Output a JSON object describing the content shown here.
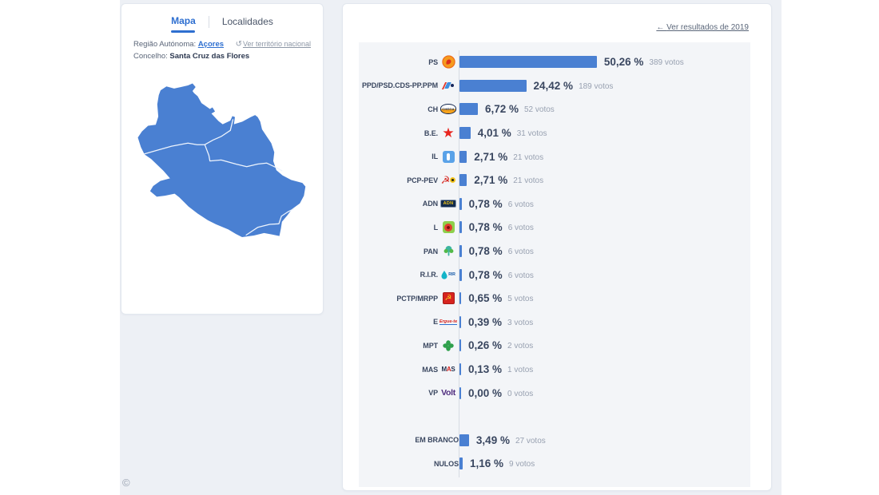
{
  "left_panel": {
    "tabs": [
      {
        "label": "Mapa",
        "active": true
      },
      {
        "label": "Localidades",
        "active": false
      }
    ],
    "region_label": "Região Autónoma:",
    "region_value": "Açores",
    "territory_link": "Ver território nacional",
    "concelho_label": "Concelho:",
    "concelho_value": "Santa Cruz das Flores",
    "map_fill_color": "#4a80d2"
  },
  "right_panel": {
    "back_link": "Ver resultados de 2019",
    "bar_color": "#4a80d2",
    "results": [
      {
        "party": "PS",
        "pct": "50,26 %",
        "votes": "389 votos",
        "value": 50.26,
        "icon": "ps-logo"
      },
      {
        "party": "PPD/PSD.CDS-PP.PPM",
        "pct": "24,42 %",
        "votes": "189 votos",
        "value": 24.42,
        "icon": "psd-coalition-logo"
      },
      {
        "party": "CH",
        "pct": "6,72 %",
        "votes": "52 votos",
        "value": 6.72,
        "icon": "chega-logo"
      },
      {
        "party": "B.E.",
        "pct": "4,01 %",
        "votes": "31 votos",
        "value": 4.01,
        "icon": "be-logo"
      },
      {
        "party": "IL",
        "pct": "2,71 %",
        "votes": "21 votos",
        "value": 2.71,
        "icon": "il-logo"
      },
      {
        "party": "PCP-PEV",
        "pct": "2,71 %",
        "votes": "21 votos",
        "value": 2.71,
        "icon": "pcp-pev-logo"
      },
      {
        "party": "ADN",
        "pct": "0,78 %",
        "votes": "6 votos",
        "value": 0.78,
        "icon": "adn-logo"
      },
      {
        "party": "L",
        "pct": "0,78 %",
        "votes": "6 votos",
        "value": 0.78,
        "icon": "livre-logo"
      },
      {
        "party": "PAN",
        "pct": "0,78 %",
        "votes": "6 votos",
        "value": 0.78,
        "icon": "pan-logo"
      },
      {
        "party": "R.I.R.",
        "pct": "0,78 %",
        "votes": "6 votos",
        "value": 0.78,
        "icon": "rir-logo"
      },
      {
        "party": "PCTP/MRPP",
        "pct": "0,65 %",
        "votes": "5 votos",
        "value": 0.65,
        "icon": "pctp-logo"
      },
      {
        "party": "E",
        "pct": "0,39 %",
        "votes": "3 votos",
        "value": 0.39,
        "icon": "ergue-te-logo"
      },
      {
        "party": "MPT",
        "pct": "0,26 %",
        "votes": "2 votos",
        "value": 0.26,
        "icon": "mpt-logo"
      },
      {
        "party": "MAS",
        "pct": "0,13 %",
        "votes": "1 votos",
        "value": 0.13,
        "icon": "mas-logo"
      },
      {
        "party": "VP",
        "pct": "0,00 %",
        "votes": "0 votos",
        "value": 0.0,
        "icon": "volt-logo"
      }
    ],
    "summary": [
      {
        "party": "EM BRANCO",
        "pct": "3,49 %",
        "votes": "27 votos",
        "value": 3.49
      },
      {
        "party": "NULOS",
        "pct": "1,16 %",
        "votes": "9 votos",
        "value": 1.16
      }
    ]
  },
  "footer": {
    "copyright": "©"
  },
  "chart_data": {
    "type": "bar",
    "orientation": "horizontal",
    "categories": [
      "PS",
      "PPD/PSD.CDS-PP.PPM",
      "CH",
      "B.E.",
      "IL",
      "PCP-PEV",
      "ADN",
      "L",
      "PAN",
      "R.I.R.",
      "PCTP/MRPP",
      "E",
      "MPT",
      "MAS",
      "VP",
      "EM BRANCO",
      "NULOS"
    ],
    "values_percent": [
      50.26,
      24.42,
      6.72,
      4.01,
      2.71,
      2.71,
      0.78,
      0.78,
      0.78,
      0.78,
      0.65,
      0.39,
      0.26,
      0.13,
      0.0,
      3.49,
      1.16
    ],
    "values_votes": [
      389,
      189,
      52,
      31,
      21,
      21,
      6,
      6,
      6,
      6,
      5,
      3,
      2,
      1,
      0,
      27,
      9
    ],
    "title": "",
    "xlabel": "",
    "ylabel": "",
    "legend": false,
    "grid": false
  }
}
